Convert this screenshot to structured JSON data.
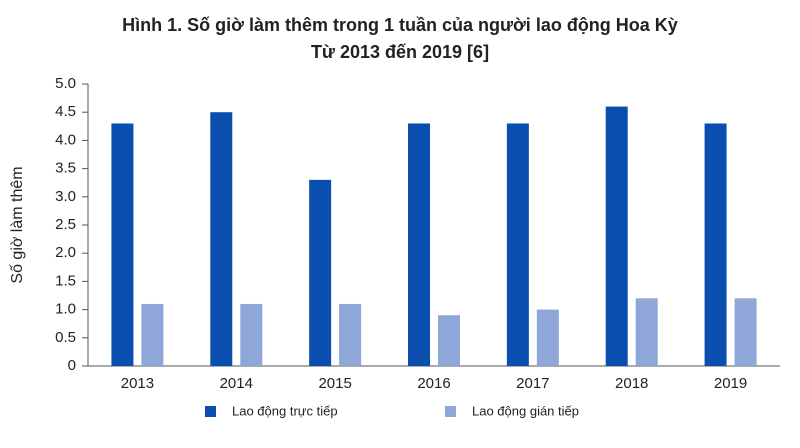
{
  "chart_data": {
    "type": "bar",
    "title": "Hình 1. Số giờ làm thêm trong 1 tuần của người lao động Hoa Kỳ",
    "subtitle": "Từ 2013 đến 2019 [6]",
    "y_label": "Số giờ làm thêm",
    "categories": [
      "2013",
      "2014",
      "2015",
      "2016",
      "2017",
      "2018",
      "2019"
    ],
    "series": [
      {
        "name": "Lao động trực tiếp",
        "color": "#0a4fb0",
        "values": [
          4.3,
          4.5,
          3.3,
          4.3,
          4.3,
          4.6,
          4.3
        ]
      },
      {
        "name": "Lao động gián tiếp",
        "color": "#8fa6d8",
        "values": [
          1.1,
          1.1,
          1.1,
          0.9,
          1.0,
          1.2,
          1.2
        ]
      }
    ],
    "ylim": [
      0,
      5
    ],
    "yticks": [
      0,
      0.5,
      {
        "value": 1,
        "label": "1.0"
      },
      1.5,
      {
        "value": 2,
        "label": "2.0"
      },
      2.5,
      {
        "value": 3,
        "label": "3.0"
      },
      3.5,
      {
        "value": 4,
        "label": "4.0"
      },
      4.5,
      {
        "value": 5,
        "label": "5.0"
      }
    ],
    "grid": false,
    "legend": "bottom"
  }
}
